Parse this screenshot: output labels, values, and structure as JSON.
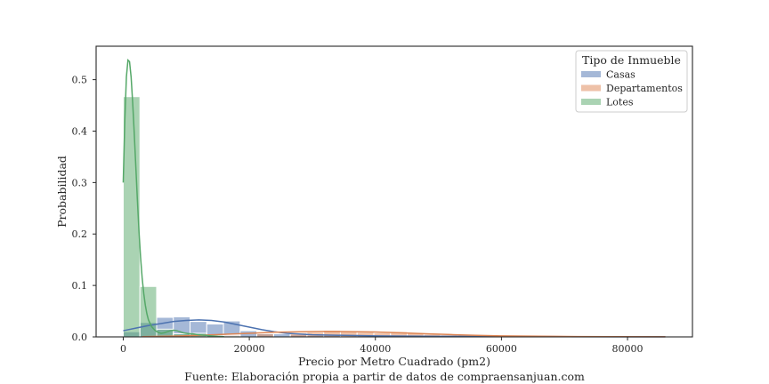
{
  "chart_data": {
    "type": "histogram",
    "xlabel": "Precio por Metro Cuadrado (pm2)",
    "ylabel": "Probabilidad",
    "caption": "Fuente: Elaboración propia a partir de datos de compraensanjuan.com",
    "xlim": [
      -4300,
      90300
    ],
    "ylim": [
      0,
      0.565
    ],
    "xticks": [
      {
        "value": 0,
        "label": "0"
      },
      {
        "value": 20000,
        "label": "20000"
      },
      {
        "value": 40000,
        "label": "40000"
      },
      {
        "value": 60000,
        "label": "60000"
      },
      {
        "value": 80000,
        "label": "80000"
      }
    ],
    "yticks": [
      {
        "value": 0.0,
        "label": "0.0"
      },
      {
        "value": 0.1,
        "label": "0.1"
      },
      {
        "value": 0.2,
        "label": "0.2"
      },
      {
        "value": 0.3,
        "label": "0.3"
      },
      {
        "value": 0.4,
        "label": "0.4"
      },
      {
        "value": 0.5,
        "label": "0.5"
      }
    ],
    "grid": false,
    "legend": {
      "title": "Tipo de Inmueble",
      "placement": "top-right"
    },
    "bin_width": 2650,
    "series": [
      {
        "name": "Casas",
        "color": "#4c72b0",
        "bin_starts": [
          0,
          2650,
          5300,
          7950,
          10600,
          13250,
          15900,
          18550,
          21200,
          23850,
          26500,
          29150,
          31800,
          34450,
          37100,
          39750,
          42400,
          45050,
          47700
        ],
        "values": [
          0.01,
          0.028,
          0.038,
          0.039,
          0.03,
          0.025,
          0.031,
          0.012,
          0.008,
          0.006,
          0.004,
          0.003,
          0.003,
          0.002,
          0.002,
          0.001,
          0.001,
          0.001,
          0.001
        ],
        "kde_x": [
          0,
          2000,
          4000,
          6000,
          8000,
          10000,
          12000,
          14000,
          16000,
          18000,
          20000,
          22000,
          24000,
          26000,
          30000,
          35000,
          40000,
          50000,
          60000,
          70000,
          80000,
          86000
        ],
        "kde_y": [
          0.012,
          0.017,
          0.022,
          0.026,
          0.03,
          0.032,
          0.033,
          0.032,
          0.029,
          0.024,
          0.019,
          0.014,
          0.01,
          0.007,
          0.004,
          0.003,
          0.002,
          0.001,
          0.001,
          0.0005,
          0.0003,
          0.0002
        ]
      },
      {
        "name": "Departamentos",
        "color": "#dd8452",
        "bin_starts": [
          5300,
          10600,
          15900,
          21200,
          26500,
          29150,
          31800,
          34450,
          37100,
          39750,
          42400,
          45050,
          47700,
          50350,
          53000,
          55650,
          58300,
          60950,
          63600,
          66250,
          68900,
          71550,
          74200,
          76850,
          79500,
          82150
        ],
        "values": [
          0.001,
          0.002,
          0.004,
          0.006,
          0.008,
          0.009,
          0.013,
          0.01,
          0.009,
          0.008,
          0.01,
          0.008,
          0.005,
          0.004,
          0.003,
          0.002,
          0.002,
          0.001,
          0.001,
          0.001,
          0.001,
          0.0005,
          0.0005,
          0.0005,
          0.0005,
          0.0005
        ],
        "kde_x": [
          3000,
          8000,
          12000,
          16000,
          20000,
          24000,
          28000,
          32000,
          36000,
          40000,
          44000,
          48000,
          52000,
          56000,
          60000,
          66000,
          72000,
          78000,
          86000
        ],
        "kde_y": [
          0.0005,
          0.0015,
          0.003,
          0.005,
          0.007,
          0.009,
          0.01,
          0.0105,
          0.0102,
          0.0095,
          0.008,
          0.006,
          0.0045,
          0.003,
          0.002,
          0.0012,
          0.0007,
          0.0004,
          0.0002
        ]
      },
      {
        "name": "Lotes",
        "color": "#55a868",
        "bin_starts": [
          0,
          2650,
          5300,
          7950,
          10600,
          13250,
          15900
        ],
        "values": [
          0.467,
          0.098,
          0.015,
          0.006,
          0.007,
          0.003,
          0.002
        ],
        "kde_x": [
          0,
          250,
          500,
          750,
          1000,
          1250,
          1500,
          1750,
          2000,
          2250,
          2500,
          2750,
          3000,
          3250,
          3500,
          3750,
          4000,
          4500,
          5000,
          5500,
          6000,
          6500,
          7000,
          7500,
          8000,
          8500,
          9000,
          9500,
          10000,
          10500,
          11000,
          11500,
          12000,
          13000,
          14000,
          15000,
          16000
        ],
        "kde_y": [
          0.3,
          0.42,
          0.505,
          0.538,
          0.535,
          0.505,
          0.455,
          0.395,
          0.33,
          0.265,
          0.205,
          0.155,
          0.115,
          0.085,
          0.062,
          0.045,
          0.033,
          0.02,
          0.013,
          0.009,
          0.007,
          0.008,
          0.01,
          0.012,
          0.013,
          0.012,
          0.01,
          0.008,
          0.007,
          0.006,
          0.006,
          0.005,
          0.004,
          0.003,
          0.002,
          0.001,
          0.0005
        ]
      }
    ]
  }
}
